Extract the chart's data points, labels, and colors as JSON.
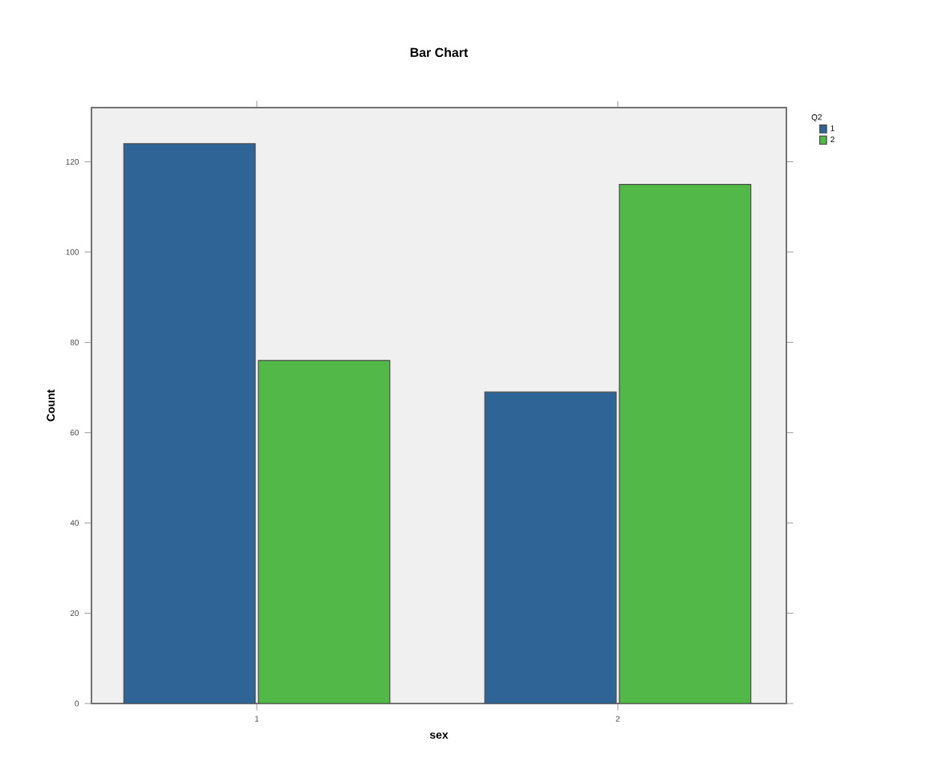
{
  "chart_data": {
    "type": "bar",
    "title": "Bar Chart",
    "xlabel": "sex",
    "ylabel": "Count",
    "legend_title": "Q2",
    "categories": [
      "1",
      "2"
    ],
    "series": [
      {
        "name": "1",
        "color": "#2e6496",
        "values": [
          124,
          69
        ]
      },
      {
        "name": "2",
        "color": "#52b847",
        "values": [
          76,
          115
        ]
      }
    ],
    "ylim": [
      0,
      132
    ],
    "yticks": [
      0,
      20,
      40,
      60,
      80,
      100,
      120
    ],
    "grid": false,
    "legend": "top right"
  }
}
